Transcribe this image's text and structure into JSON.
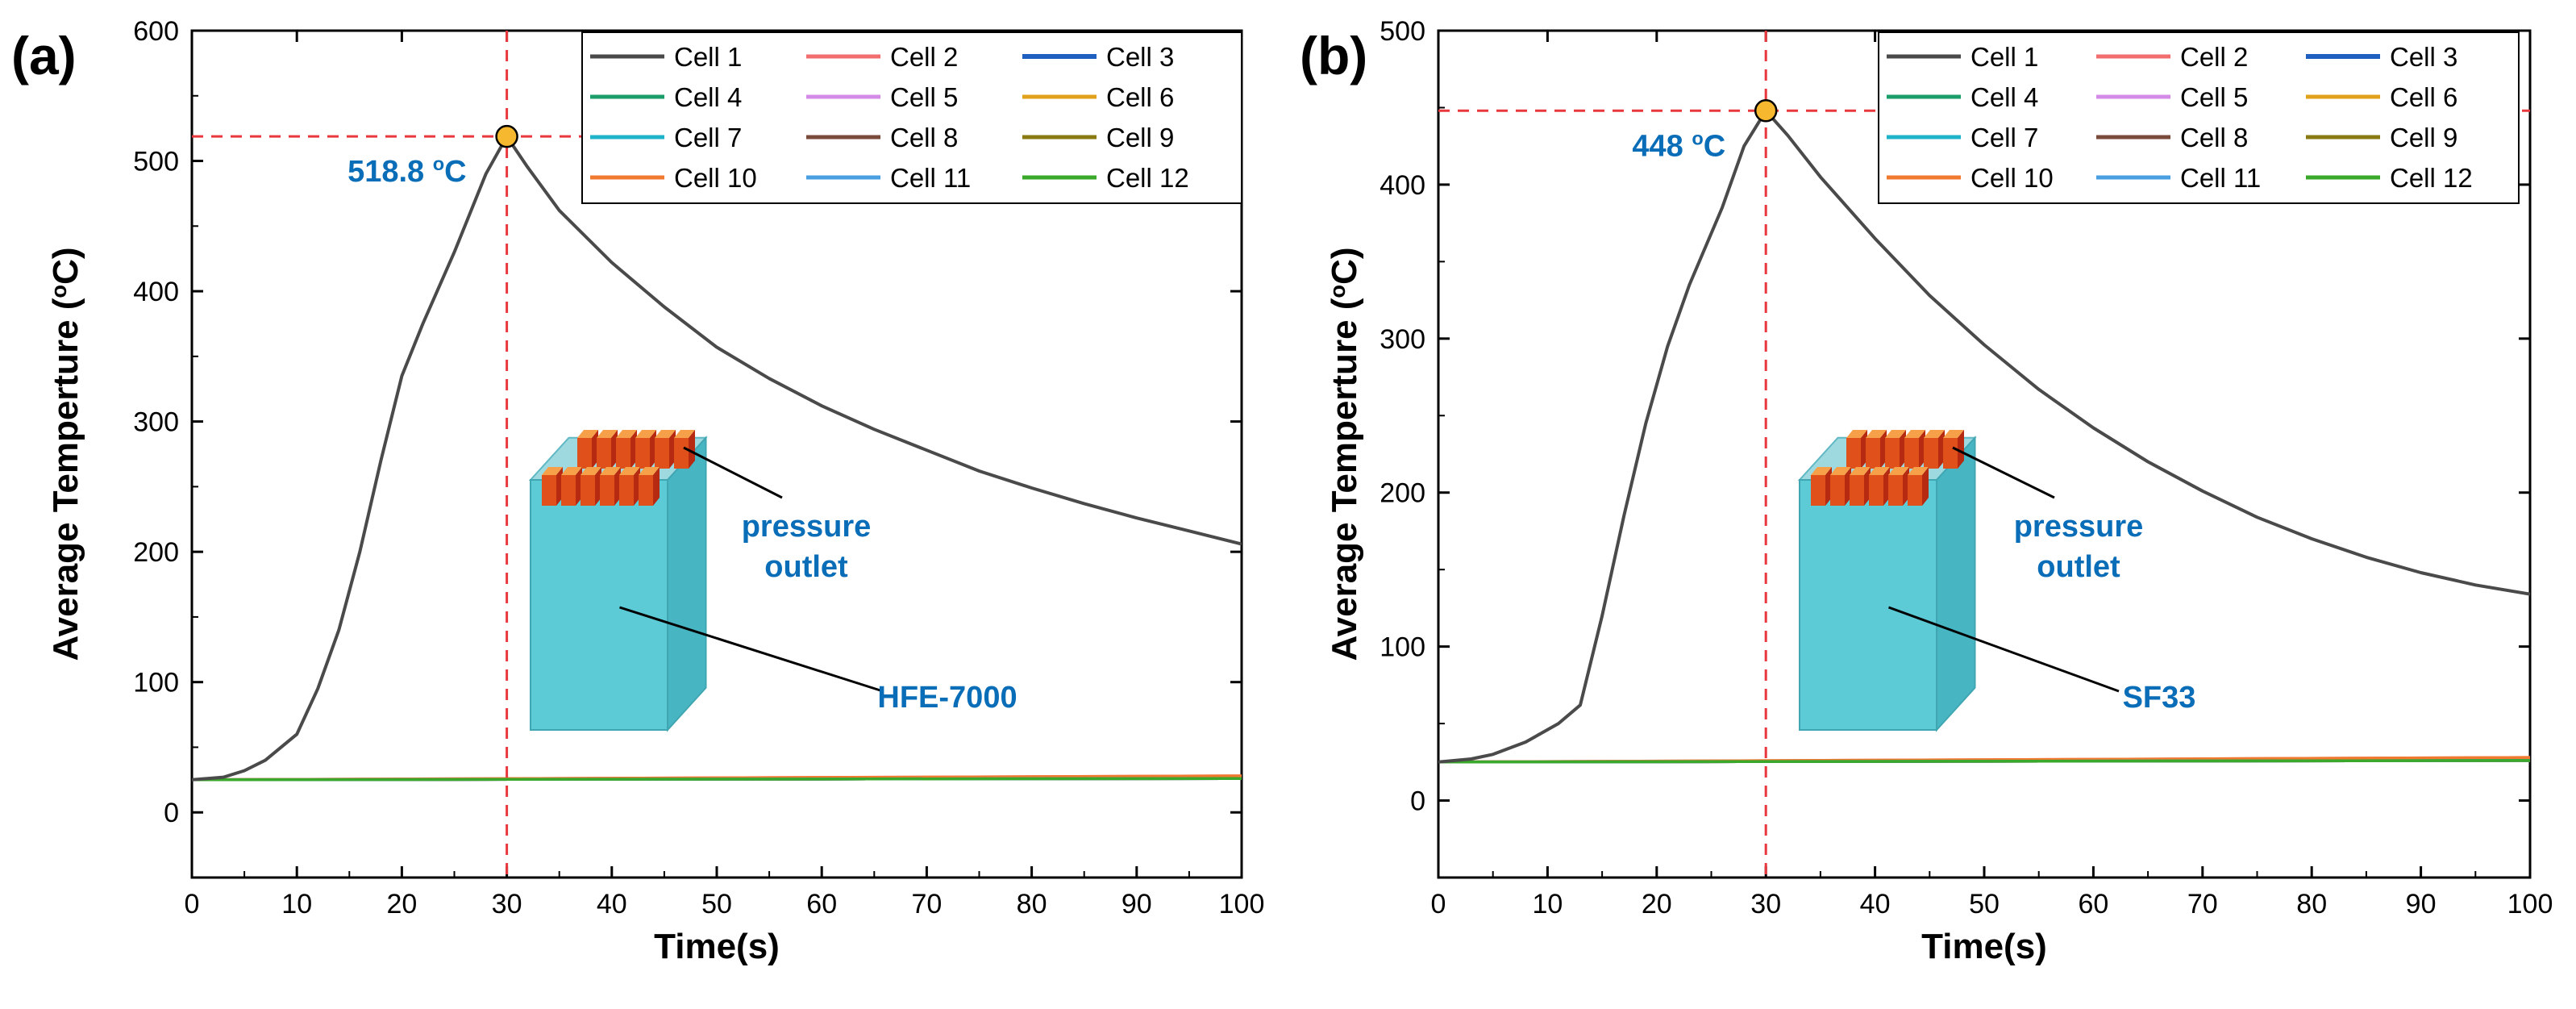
{
  "chart_data": [
    {
      "type": "line",
      "panel_label": "(a)",
      "xlabel": "Time(s)",
      "ylabel": "Average Temperture (°C)",
      "xlim": [
        0,
        100
      ],
      "ylim": [
        -50,
        600
      ],
      "x_ticks": [
        0,
        10,
        20,
        30,
        40,
        50,
        60,
        70,
        80,
        90,
        100
      ],
      "y_ticks": [
        0,
        100,
        200,
        300,
        400,
        500,
        600
      ],
      "grid": false,
      "legend_position": "top-right",
      "legend_columns": 3,
      "series": [
        {
          "name": "Cell 1",
          "color": "#4a4a4a",
          "x": [
            0,
            3,
            5,
            7,
            10,
            12,
            14,
            16,
            18,
            20,
            22,
            25,
            28,
            30,
            32,
            35,
            40,
            45,
            50,
            55,
            60,
            65,
            70,
            75,
            80,
            85,
            90,
            95,
            100
          ],
          "y": [
            25,
            27,
            32,
            40,
            60,
            95,
            140,
            200,
            270,
            335,
            375,
            430,
            490,
            518.8,
            495,
            462,
            422,
            388,
            357,
            333,
            312,
            294,
            278,
            262,
            249,
            237,
            226,
            216,
            206
          ]
        },
        {
          "name": "Cell 2",
          "color": "#f26d6d",
          "x": [
            0,
            100
          ],
          "y": [
            25,
            28
          ]
        },
        {
          "name": "Cell 3",
          "color": "#1f5fbf",
          "x": [
            0,
            100
          ],
          "y": [
            25,
            26
          ]
        },
        {
          "name": "Cell 4",
          "color": "#1b9e6a",
          "x": [
            0,
            100
          ],
          "y": [
            25,
            26
          ]
        },
        {
          "name": "Cell 5",
          "color": "#d48be8",
          "x": [
            0,
            100
          ],
          "y": [
            25,
            26
          ]
        },
        {
          "name": "Cell 6",
          "color": "#e0a21a",
          "x": [
            0,
            100
          ],
          "y": [
            25,
            26
          ]
        },
        {
          "name": "Cell 7",
          "color": "#1fb3c9",
          "x": [
            0,
            100
          ],
          "y": [
            25,
            26
          ]
        },
        {
          "name": "Cell 8",
          "color": "#7a4a3a",
          "x": [
            0,
            100
          ],
          "y": [
            25,
            26
          ]
        },
        {
          "name": "Cell 9",
          "color": "#8a7a12",
          "x": [
            0,
            100
          ],
          "y": [
            25,
            26
          ]
        },
        {
          "name": "Cell 10",
          "color": "#f07a30",
          "x": [
            0,
            100
          ],
          "y": [
            25,
            28
          ]
        },
        {
          "name": "Cell 11",
          "color": "#4a9fe0",
          "x": [
            0,
            100
          ],
          "y": [
            25,
            26
          ]
        },
        {
          "name": "Cell 12",
          "color": "#3aa82a",
          "x": [
            0,
            100
          ],
          "y": [
            25,
            26
          ]
        }
      ],
      "peak": {
        "x": 30,
        "y": 518.8,
        "label": "518.8 °C",
        "marker_color": "#f5b82e"
      },
      "inset_labels": {
        "outlet": "pressure\noutlet",
        "fluid": "HFE-7000"
      }
    },
    {
      "type": "line",
      "panel_label": "(b)",
      "xlabel": "Time(s)",
      "ylabel": "Average Temperture (°C)",
      "xlim": [
        0,
        100
      ],
      "ylim": [
        -50,
        500
      ],
      "x_ticks": [
        0,
        10,
        20,
        30,
        40,
        50,
        60,
        70,
        80,
        90,
        100
      ],
      "y_ticks": [
        0,
        100,
        200,
        300,
        400,
        500
      ],
      "grid": false,
      "legend_position": "top-right",
      "legend_columns": 3,
      "series": [
        {
          "name": "Cell 1",
          "color": "#4a4a4a",
          "x": [
            0,
            3,
            5,
            8,
            11,
            13,
            15,
            17,
            19,
            21,
            23,
            26,
            28,
            30,
            32,
            35,
            40,
            45,
            50,
            55,
            60,
            65,
            70,
            75,
            80,
            85,
            90,
            95,
            100
          ],
          "y": [
            25,
            27,
            30,
            38,
            50,
            62,
            120,
            185,
            245,
            295,
            335,
            385,
            425,
            448,
            432,
            405,
            365,
            328,
            296,
            267,
            242,
            220,
            201,
            184,
            170,
            158,
            148,
            140,
            134
          ]
        },
        {
          "name": "Cell 2",
          "color": "#f26d6d",
          "x": [
            0,
            100
          ],
          "y": [
            25,
            28
          ]
        },
        {
          "name": "Cell 3",
          "color": "#1f5fbf",
          "x": [
            0,
            100
          ],
          "y": [
            25,
            26
          ]
        },
        {
          "name": "Cell 4",
          "color": "#1b9e6a",
          "x": [
            0,
            100
          ],
          "y": [
            25,
            26
          ]
        },
        {
          "name": "Cell 5",
          "color": "#d48be8",
          "x": [
            0,
            100
          ],
          "y": [
            25,
            26
          ]
        },
        {
          "name": "Cell 6",
          "color": "#e0a21a",
          "x": [
            0,
            100
          ],
          "y": [
            25,
            26
          ]
        },
        {
          "name": "Cell 7",
          "color": "#1fb3c9",
          "x": [
            0,
            100
          ],
          "y": [
            25,
            26
          ]
        },
        {
          "name": "Cell 8",
          "color": "#7a4a3a",
          "x": [
            0,
            100
          ],
          "y": [
            25,
            26
          ]
        },
        {
          "name": "Cell 9",
          "color": "#8a7a12",
          "x": [
            0,
            100
          ],
          "y": [
            25,
            26
          ]
        },
        {
          "name": "Cell 10",
          "color": "#f07a30",
          "x": [
            0,
            100
          ],
          "y": [
            25,
            28
          ]
        },
        {
          "name": "Cell 11",
          "color": "#4a9fe0",
          "x": [
            0,
            100
          ],
          "y": [
            25,
            26
          ]
        },
        {
          "name": "Cell 12",
          "color": "#3aa82a",
          "x": [
            0,
            100
          ],
          "y": [
            25,
            26
          ]
        }
      ],
      "peak": {
        "x": 30,
        "y": 448,
        "label": "448 °C",
        "marker_color": "#f5b82e"
      },
      "inset_labels": {
        "outlet": "pressure\noutlet",
        "fluid": "SF33"
      }
    }
  ]
}
